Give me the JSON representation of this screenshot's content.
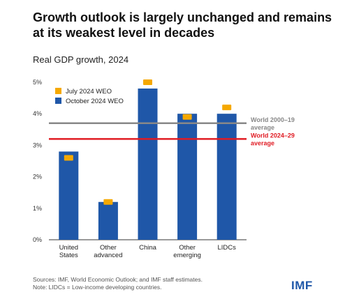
{
  "title": "Growth outlook is largely unchanged and remains at its weakest level in decades",
  "subtitle": "Real GDP growth, 2024",
  "chart_data": {
    "type": "bar",
    "categories": [
      "United\nStates",
      "Other\nadvanced",
      "China",
      "Other\nemerging",
      "LIDCs"
    ],
    "series": [
      {
        "name": "October 2024 WEO",
        "values": [
          2.8,
          1.2,
          4.8,
          4.0,
          4.0
        ],
        "color": "#1f57a8",
        "marker": "bar"
      },
      {
        "name": "July 2024 WEO",
        "values": [
          2.6,
          1.2,
          5.0,
          3.9,
          4.2
        ],
        "color": "#f5a800",
        "marker": "dash"
      }
    ],
    "reference_lines": [
      {
        "label_line1": "World 2000–19",
        "label_line2": "average",
        "value": 3.7,
        "color": "#888888"
      },
      {
        "label_line1": "World 2024–29",
        "label_line2": "average",
        "value": 3.2,
        "color": "#e01b23"
      }
    ],
    "y_ticks": [
      "0%",
      "1%",
      "2%",
      "3%",
      "4%",
      "5%"
    ],
    "y_tick_values": [
      0,
      1,
      2,
      3,
      4,
      5
    ],
    "ylim": [
      0,
      5
    ],
    "xlabel": "",
    "ylabel": "",
    "legend_position": "top-left",
    "grid": false
  },
  "footnote": {
    "line1": "Sources: IMF, World Economic Outlook; and IMF staff estimates.",
    "line2": "Note: LIDCs = Low-income developing countries."
  },
  "logo_text": "IMF",
  "logo_color": "#1f57a8"
}
